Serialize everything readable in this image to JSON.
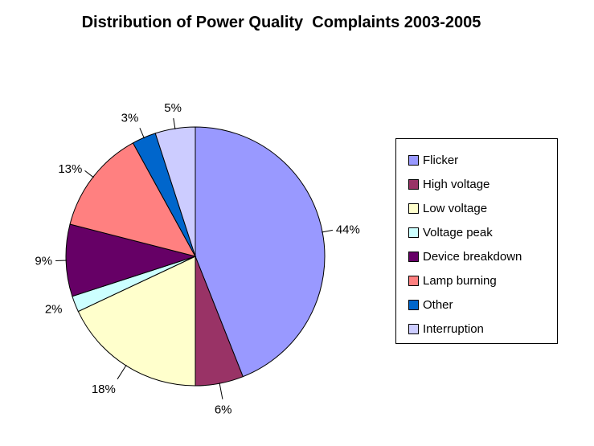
{
  "chart_data": {
    "type": "pie",
    "title": "Distribution of Power Quality  Complaints 2003-2005",
    "categories": [
      "Flicker",
      "High voltage",
      "Low voltage",
      "Voltage peak",
      "Device breakdown",
      "Lamp burning",
      "Other",
      "Interruption"
    ],
    "values": [
      44,
      6,
      18,
      2,
      9,
      13,
      3,
      5
    ],
    "labels": [
      "44%",
      "6%",
      "18%",
      "2%",
      "9%",
      "13%",
      "3%",
      "5%"
    ],
    "unit": "%",
    "colors": [
      "#9999FF",
      "#993366",
      "#FFFFCC",
      "#CCFFFF",
      "#660066",
      "#FF8080",
      "#0066CC",
      "#CCCCFF"
    ],
    "start_angle_deg": 0,
    "direction": "clockwise",
    "legend_position": "right",
    "background_color": "#FFFFFF",
    "slice_border_color": "#000000",
    "leader_line_color": "#000000",
    "label_color": "#000000",
    "title_color": "#000000",
    "legend_border_color": "#000000"
  }
}
